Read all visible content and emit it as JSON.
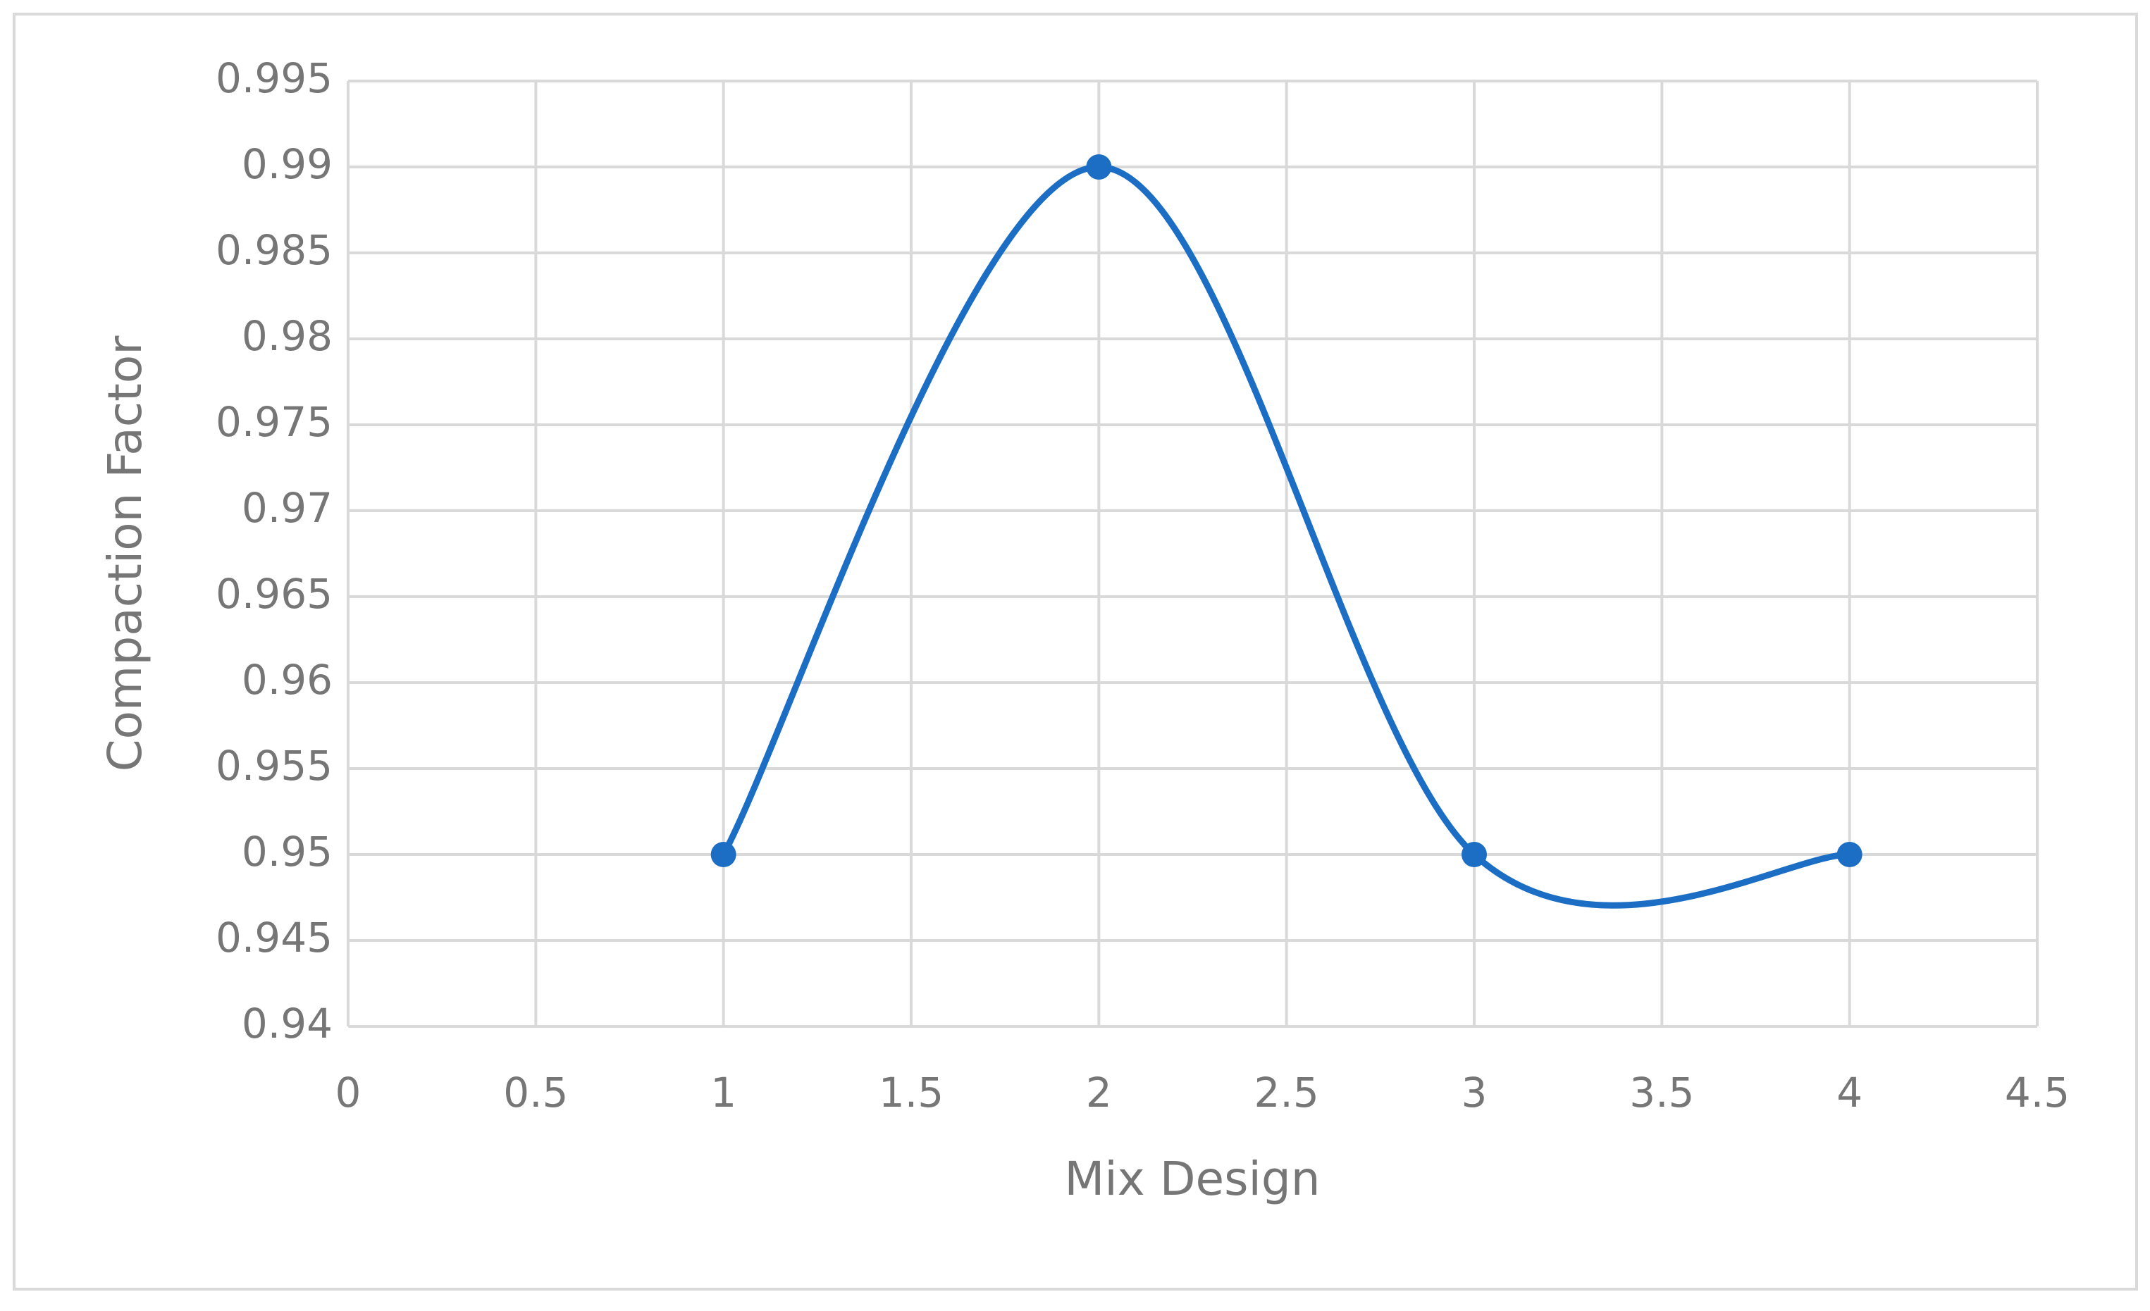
{
  "chart_data": {
    "type": "line",
    "smooth": true,
    "markers": true,
    "x_label": "Mix Design",
    "y_label": "Compaction Factor",
    "x": [
      1,
      2,
      3,
      4
    ],
    "series": [
      {
        "name": "Compaction Factor",
        "color": "#1b6ec4",
        "values": [
          0.95,
          0.99,
          0.95,
          0.95
        ]
      }
    ],
    "xlim": [
      0,
      4.5
    ],
    "xticks": [
      0,
      0.5,
      1,
      1.5,
      2,
      2.5,
      3,
      3.5,
      4,
      4.5
    ],
    "ylim": [
      0.94,
      0.995
    ],
    "yticks": [
      0.94,
      0.945,
      0.95,
      0.955,
      0.96,
      0.965,
      0.97,
      0.975,
      0.98,
      0.985,
      0.99,
      0.995
    ],
    "grid": true
  }
}
